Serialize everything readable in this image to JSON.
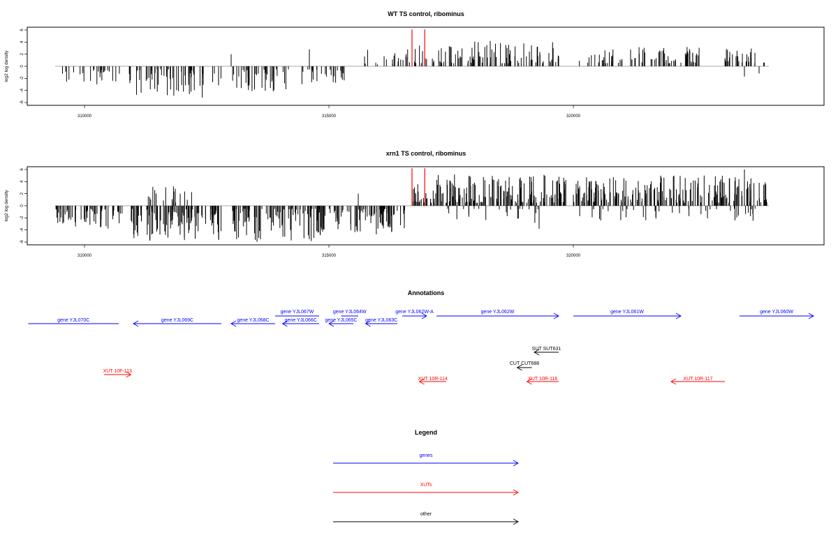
{
  "chart_data": [
    {
      "type": "bar",
      "title": "WT TS control, ribominus",
      "ylabel": "log2 log density",
      "xlim": [
        308800,
        325000
      ],
      "ylim": [
        -6.5,
        6.5
      ],
      "yticks": [
        -6,
        -4,
        -2,
        0,
        2,
        4,
        6
      ],
      "xticks": [
        310000,
        315000,
        320000
      ],
      "xtick_labels": [
        "310000",
        "315000",
        "320000"
      ],
      "grid": false,
      "highlight_color": "#ff0000",
      "bar_color": "#000000",
      "highlight_x": [
        316700,
        316960
      ],
      "highlight_values": [
        6.1,
        6.1
      ],
      "regions": [
        {
          "start": 309400,
          "end": 310750,
          "min": -3.0,
          "max": -0.5,
          "sign": -1,
          "n": 26
        },
        {
          "start": 310900,
          "end": 312800,
          "min": -5.2,
          "max": -0.5,
          "sign": -1,
          "n": 60
        },
        {
          "start": 313000,
          "end": 314200,
          "min": -4.2,
          "max": -0.5,
          "sign": -1,
          "n": 38
        },
        {
          "start": 314400,
          "end": 315500,
          "min": -3.0,
          "max": -0.5,
          "sign": -1,
          "n": 26
        },
        {
          "start": 315700,
          "end": 316600,
          "min": 0.3,
          "max": 2.8,
          "sign": 1,
          "n": 18
        },
        {
          "start": 316600,
          "end": 317000,
          "min": 0.5,
          "max": 3.5,
          "sign": 1,
          "n": 10
        },
        {
          "start": 317100,
          "end": 319800,
          "min": 0.5,
          "max": 4.2,
          "sign": 1,
          "n": 95
        },
        {
          "start": 320100,
          "end": 322600,
          "min": 0.5,
          "max": 3.2,
          "sign": 1,
          "n": 75
        },
        {
          "start": 323100,
          "end": 324000,
          "min": 0.5,
          "max": 3.2,
          "sign": 1,
          "n": 30
        }
      ],
      "spikes": [
        {
          "x": 313000,
          "value": 2.0
        },
        {
          "x": 314600,
          "value": 2.8
        },
        {
          "x": 318300,
          "value": 4.2
        },
        {
          "x": 323500,
          "value": -1.7
        },
        {
          "x": 323800,
          "value": -1.2
        }
      ]
    },
    {
      "type": "bar",
      "title": "xrn1 TS control, ribominus",
      "ylabel": "log2 log density",
      "xlim": [
        308800,
        325000
      ],
      "ylim": [
        -6.5,
        6.5
      ],
      "yticks": [
        -6,
        -4,
        -2,
        0,
        2,
        4,
        6
      ],
      "xticks": [
        310000,
        315000,
        320000
      ],
      "xtick_labels": [
        "310000",
        "315000",
        "320000"
      ],
      "grid": false,
      "highlight_color": "#ff0000",
      "bar_color": "#000000",
      "highlight_x": [
        316700,
        316960
      ],
      "highlight_values": [
        6.2,
        6.2
      ],
      "regions": [
        {
          "start": 309400,
          "end": 310800,
          "min": -4.0,
          "max": -0.5,
          "sign": -1,
          "n": 60
        },
        {
          "start": 310950,
          "end": 312800,
          "min": -6.0,
          "max": -0.5,
          "sign": -1,
          "n": 110
        },
        {
          "start": 313000,
          "end": 314950,
          "min": -6.0,
          "max": -0.5,
          "sign": -1,
          "n": 110
        },
        {
          "start": 315000,
          "end": 316550,
          "min": -5.0,
          "max": -0.5,
          "sign": -1,
          "n": 80
        },
        {
          "start": 316650,
          "end": 317100,
          "min": 0.5,
          "max": 4.0,
          "sign": 1,
          "n": 20
        },
        {
          "start": 317100,
          "end": 319900,
          "min": 0.5,
          "max": 5.2,
          "sign": 1,
          "n": 160
        },
        {
          "start": 320000,
          "end": 324000,
          "min": 0.5,
          "max": 5.0,
          "sign": 1,
          "n": 200
        },
        {
          "start": 317300,
          "end": 319300,
          "min": -3.0,
          "max": -0.5,
          "sign": -1,
          "n": 22
        },
        {
          "start": 320100,
          "end": 323800,
          "min": -2.5,
          "max": -0.5,
          "sign": -1,
          "n": 40
        },
        {
          "start": 311200,
          "end": 312400,
          "min": 0.5,
          "max": 3.2,
          "sign": 1,
          "n": 18
        }
      ],
      "spikes": [
        {
          "x": 323500,
          "value": 6.0
        },
        {
          "x": 319300,
          "value": -3.8
        },
        {
          "x": 315600,
          "value": 2.0
        }
      ]
    }
  ],
  "annotations": {
    "title": "Annotations",
    "xlim": [
      308800,
      325000
    ],
    "features": [
      {
        "label": "gene YJL070C",
        "color": "#0000ff",
        "start": 308850,
        "end": 310700,
        "strand": "-",
        "row": 1,
        "arrow": false
      },
      {
        "label": "gene YJL069C",
        "color": "#0000ff",
        "start": 311000,
        "end": 312800,
        "strand": "-",
        "row": 1,
        "arrow": true
      },
      {
        "label": "gene YJL067W",
        "color": "#0000ff",
        "start": 313900,
        "end": 314800,
        "strand": "+",
        "row": 0,
        "arrow": false
      },
      {
        "label": "gene YJL068C",
        "color": "#0000ff",
        "start": 313000,
        "end": 313900,
        "strand": "-",
        "row": 1,
        "arrow": true
      },
      {
        "label": "gene YJL066C",
        "color": "#0000ff",
        "start": 314050,
        "end": 314800,
        "strand": "-",
        "row": 1,
        "arrow": true
      },
      {
        "label": "gene YJL064W",
        "color": "#0000ff",
        "start": 315250,
        "end": 315600,
        "strand": "+",
        "row": 0,
        "arrow": false
      },
      {
        "label": "gene YJL065C",
        "color": "#0000ff",
        "start": 315000,
        "end": 315500,
        "strand": "-",
        "row": 1,
        "arrow": true
      },
      {
        "label": "gene YJL063C",
        "color": "#0000ff",
        "start": 315750,
        "end": 316400,
        "strand": "-",
        "row": 1,
        "arrow": true
      },
      {
        "label": "gene YJL062W-A",
        "color": "#0000ff",
        "start": 316500,
        "end": 317000,
        "strand": "+",
        "row": 0,
        "arrow": true
      },
      {
        "label": "gene YJL062W",
        "color": "#0000ff",
        "start": 317200,
        "end": 319700,
        "strand": "+",
        "row": 0,
        "arrow": true
      },
      {
        "label": "gene YJL061W",
        "color": "#0000ff",
        "start": 320000,
        "end": 322200,
        "strand": "+",
        "row": 0,
        "arrow": true
      },
      {
        "label": "gene YJL060W",
        "color": "#0000ff",
        "start": 323400,
        "end": 325000,
        "strand": "+",
        "row": 0,
        "arrow": true
      },
      {
        "label": "SUT SUT631",
        "color": "#000000",
        "start": 319200,
        "end": 319700,
        "strand": "-",
        "row": 2,
        "arrow": true
      },
      {
        "label": "CUT CUT688",
        "color": "#000000",
        "start": 318850,
        "end": 319150,
        "strand": "-",
        "row": 3,
        "arrow": true
      },
      {
        "label": "XUT 10F-113",
        "color": "#ff0000",
        "start": 310400,
        "end": 310950,
        "strand": "+",
        "row": 3.6,
        "arrow": true
      },
      {
        "label": "XUT 10R-114",
        "color": "#ff0000",
        "start": 316850,
        "end": 317400,
        "strand": "-",
        "row": 4,
        "arrow": true
      },
      {
        "label": "XUT 10R-116",
        "color": "#ff0000",
        "start": 319050,
        "end": 319700,
        "strand": "-",
        "row": 4,
        "arrow": true
      },
      {
        "label": "XUT 10R-117",
        "color": "#ff0000",
        "start": 322000,
        "end": 323100,
        "strand": "-",
        "row": 4,
        "arrow": true
      }
    ]
  },
  "legend": {
    "title": "Legend",
    "items": [
      {
        "label": "genes",
        "color": "#0000ff"
      },
      {
        "label": "XUTs",
        "color": "#ff0000"
      },
      {
        "label": "other",
        "color": "#000000"
      }
    ]
  }
}
